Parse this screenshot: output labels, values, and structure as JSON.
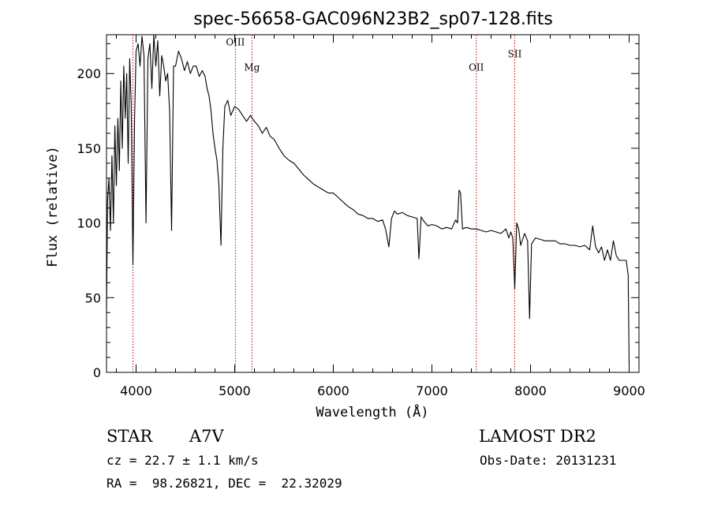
{
  "chart_data": {
    "type": "line",
    "title": "spec-56658-GAC096N23B2_sp07-128.fits",
    "xlabel": "Wavelength (Å)",
    "ylabel": "Flux (relative)",
    "xlim": [
      3700,
      9100
    ],
    "ylim": [
      0,
      226
    ],
    "xticks": [
      {
        "value": 4000,
        "label": "4000"
      },
      {
        "value": 5000,
        "label": "5000"
      },
      {
        "value": 6000,
        "label": "6000"
      },
      {
        "value": 7000,
        "label": "7000"
      },
      {
        "value": 8000,
        "label": "8000"
      },
      {
        "value": 9000,
        "label": "9000"
      }
    ],
    "yticks": [
      {
        "value": 0,
        "label": "0"
      },
      {
        "value": 50,
        "label": "50"
      },
      {
        "value": 100,
        "label": "100"
      },
      {
        "value": 150,
        "label": "150"
      },
      {
        "value": 200,
        "label": "200"
      }
    ],
    "line_color": "#000000",
    "marker_color": "#cc0000",
    "markers": [
      {
        "x": 3968,
        "label": "",
        "label_flux": 0
      },
      {
        "x": 5007,
        "label": "OIII",
        "label_flux": 219
      },
      {
        "x": 5175,
        "label": "Mg",
        "label_flux": 202
      },
      {
        "x": 7450,
        "label": "OII",
        "label_flux": 202
      },
      {
        "x": 7840,
        "label": "SII",
        "label_flux": 211
      }
    ],
    "series": [
      {
        "x": [
          3700,
          3710,
          3725,
          3740,
          3755,
          3770,
          3785,
          3800,
          3815,
          3830,
          3845,
          3860,
          3875,
          3890,
          3905,
          3920,
          3935,
          3950,
          3968,
          3985,
          4000,
          4020,
          4040,
          4060,
          4080,
          4101,
          4120,
          4140,
          4160,
          4180,
          4200,
          4220,
          4240,
          4260,
          4280,
          4300,
          4320,
          4340,
          4360,
          4380,
          4400,
          4430,
          4460,
          4490,
          4520,
          4550,
          4580,
          4610,
          4640,
          4670,
          4700,
          4720,
          4740,
          4760,
          4780,
          4800,
          4820,
          4840,
          4861,
          4880,
          4900,
          4930,
          4960,
          5000,
          5040,
          5080,
          5120,
          5160,
          5200,
          5240,
          5280,
          5320,
          5360,
          5400,
          5450,
          5500,
          5550,
          5600,
          5650,
          5700,
          5750,
          5800,
          5850,
          5900,
          5950,
          6000,
          6050,
          6100,
          6150,
          6200,
          6250,
          6300,
          6350,
          6400,
          6450,
          6500,
          6530,
          6563,
          6590,
          6620,
          6650,
          6700,
          6750,
          6800,
          6850,
          6868,
          6890,
          6920,
          6960,
          7000,
          7050,
          7100,
          7150,
          7200,
          7240,
          7260,
          7275,
          7290,
          7310,
          7350,
          7400,
          7450,
          7500,
          7550,
          7600,
          7650,
          7700,
          7750,
          7780,
          7800,
          7820,
          7840,
          7860,
          7880,
          7900,
          7940,
          7970,
          7990,
          8010,
          8050,
          8100,
          8150,
          8200,
          8250,
          8300,
          8350,
          8400,
          8450,
          8500,
          8550,
          8600,
          8630,
          8660,
          8690,
          8720,
          8750,
          8780,
          8810,
          8840,
          8870,
          8900,
          8940,
          8970,
          8990,
          9000
        ],
        "y": [
          40,
          115,
          130,
          95,
          145,
          100,
          165,
          125,
          170,
          135,
          195,
          150,
          205,
          170,
          200,
          140,
          210,
          180,
          72,
          170,
          215,
          220,
          205,
          225,
          212,
          100,
          210,
          220,
          190,
          228,
          205,
          222,
          185,
          212,
          205,
          195,
          200,
          175,
          95,
          205,
          205,
          215,
          210,
          202,
          208,
          200,
          205,
          205,
          198,
          202,
          198,
          190,
          185,
          175,
          160,
          150,
          142,
          125,
          85,
          150,
          178,
          182,
          172,
          178,
          176,
          172,
          168,
          172,
          168,
          165,
          160,
          164,
          158,
          156,
          150,
          145,
          142,
          140,
          136,
          132,
          129,
          126,
          124,
          122,
          120,
          120,
          117,
          114,
          111,
          109,
          106,
          105,
          103,
          103,
          101,
          102,
          96,
          84,
          103,
          108,
          106,
          107,
          105,
          104,
          103,
          76,
          104,
          101,
          98,
          99,
          98,
          96,
          97,
          96,
          102,
          100,
          122,
          120,
          96,
          97,
          96,
          96,
          95,
          94,
          95,
          94,
          93,
          96,
          90,
          94,
          90,
          56,
          100,
          96,
          85,
          93,
          88,
          36,
          86,
          90,
          89,
          88,
          88,
          88,
          86,
          86,
          85,
          85,
          84,
          85,
          82,
          98,
          84,
          80,
          84,
          75,
          82,
          75,
          88,
          78,
          75,
          75,
          75,
          65,
          5
        ]
      }
    ]
  },
  "info": {
    "object_class": "STAR",
    "subclass": "A7V",
    "survey": "LAMOST DR2",
    "redshift": "cz = 22.7 ± 1.1 km/s",
    "obs_date": "Obs-Date: 20131231",
    "coords": "RA =  98.26821, DEC =  22.32029"
  }
}
